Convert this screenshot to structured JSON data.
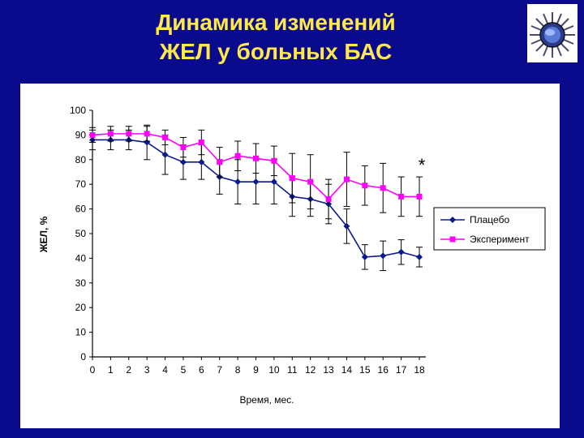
{
  "slide": {
    "title_line1": "Динамика изменений",
    "title_line2": "ЖЕЛ у больных БАС",
    "background_color": "#0a0a8c",
    "title_color": "#ffe94a"
  },
  "logo": {
    "icon": "spiky-virus-icon"
  },
  "chart_data": {
    "type": "line",
    "title": "",
    "xlabel": "Время, мес.",
    "ylabel": "ЖЕЛ, %",
    "x": [
      0,
      1,
      2,
      3,
      4,
      5,
      6,
      7,
      8,
      9,
      10,
      11,
      12,
      13,
      14,
      15,
      16,
      17,
      18
    ],
    "x_ticks": [
      "0",
      "1",
      "2",
      "3",
      "4",
      "5",
      "6",
      "7",
      "8",
      "9",
      "10",
      "11",
      "12",
      "13",
      "14",
      "15",
      "16",
      "17",
      "18"
    ],
    "ylim": [
      0,
      100
    ],
    "y_ticks": [
      "0",
      "10",
      "20",
      "30",
      "40",
      "50",
      "60",
      "70",
      "80",
      "90",
      "100"
    ],
    "grid": false,
    "legend_position": "right",
    "annotation": "*",
    "series": [
      {
        "name": "Плацебо",
        "color": "#0a1a8c",
        "marker": "diamond",
        "values": [
          88,
          88,
          88,
          87,
          82,
          79,
          79,
          73,
          71,
          71,
          71,
          65,
          64,
          62,
          53,
          40.5,
          41,
          42.5,
          40.5
        ],
        "error": [
          4,
          4,
          4,
          7,
          8,
          7,
          7,
          7,
          9,
          9,
          9,
          8,
          7,
          8,
          7,
          5,
          6,
          5,
          4
        ]
      },
      {
        "name": "Эксперимент",
        "color": "#ff00ff",
        "marker": "square",
        "values": [
          90,
          90.5,
          90.5,
          90.5,
          89,
          85,
          87,
          79,
          81.5,
          80.5,
          79.5,
          72.5,
          71,
          64,
          72,
          69.5,
          68.5,
          65,
          65
        ],
        "error": [
          3,
          3,
          3,
          3,
          3,
          4,
          5,
          6,
          6,
          6,
          6,
          10,
          11,
          8,
          11,
          8,
          10,
          8,
          8
        ]
      }
    ]
  }
}
